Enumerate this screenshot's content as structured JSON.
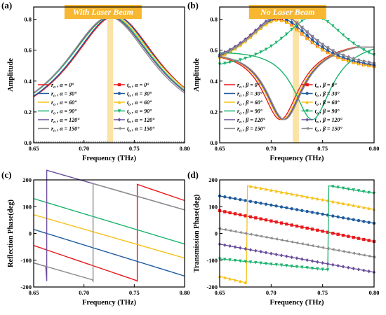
{
  "chart_data": [
    {
      "type": "line",
      "panel_label": "(a)",
      "banner": "With Laser Beam",
      "xlabel": "Frequency (THz)",
      "ylabel": "Amplitude",
      "xlim": [
        0.65,
        0.8
      ],
      "ylim": [
        0.0,
        0.88
      ],
      "xticks": [
        "0.65",
        "0.70",
        "0.75",
        "0.80"
      ],
      "yticks": [
        "0.0",
        "0.2",
        "0.4",
        "0.6",
        "0.8"
      ],
      "highlight_band": [
        0.723,
        0.729
      ],
      "legend_left": [
        "r",
        "r",
        "r",
        "r",
        "r",
        "r"
      ],
      "legend_left_sub": [
        "o",
        "o",
        "o",
        "o",
        "o",
        "o"
      ],
      "legend_right": [
        "t",
        "t",
        "t",
        "t",
        "t",
        "t"
      ],
      "legend_right_sub": [
        "o",
        "o",
        "o",
        "o",
        "o",
        "o"
      ],
      "legend_param": "α",
      "angles": [
        "0°",
        "30°",
        "60°",
        "90°",
        "120°",
        "150°"
      ],
      "series": [
        {
          "legend": "α = 0°",
          "color": "#e8191c",
          "peak": 0.731,
          "amp": 0.825,
          "width": 0.055,
          "floor": 0.0
        },
        {
          "legend": "α = 30°",
          "color": "#1f5c9e",
          "peak": 0.73,
          "amp": 0.826,
          "width": 0.055,
          "floor": 0.0
        },
        {
          "legend": "α = 60°",
          "color": "#f7c21a",
          "peak": 0.728,
          "amp": 0.822,
          "width": 0.057,
          "floor": 0.0
        },
        {
          "legend": "α = 90°",
          "color": "#1db36e",
          "peak": 0.727,
          "amp": 0.82,
          "width": 0.056,
          "floor": 0.0
        },
        {
          "legend": "α = 120°",
          "color": "#6a4c9c",
          "peak": 0.726,
          "amp": 0.818,
          "width": 0.056,
          "floor": 0.0
        },
        {
          "legend": "α = 150°",
          "color": "#8c8c8c",
          "peak": 0.725,
          "amp": 0.817,
          "width": 0.055,
          "floor": 0.0
        }
      ]
    },
    {
      "type": "line",
      "panel_label": "(b)",
      "banner": "No Laser Beam",
      "xlabel": "Frequency (THz)",
      "ylabel": "Amplitude",
      "xlim": [
        0.65,
        0.8
      ],
      "ylim": [
        0.0,
        0.88
      ],
      "xticks": [
        "0.65",
        "0.70",
        "0.75",
        "0.80"
      ],
      "yticks": [
        "0.0",
        "0.2",
        "0.4",
        "0.6",
        "0.8"
      ],
      "highlight_band": [
        0.721,
        0.727
      ],
      "legend_left": [
        "r",
        "r",
        "r",
        "r",
        "r",
        "r"
      ],
      "legend_left_sub": [
        "o",
        "o",
        "o",
        "o",
        "o",
        "o"
      ],
      "legend_right": [
        "t",
        "t",
        "t",
        "t",
        "t",
        "t"
      ],
      "legend_right_sub": [
        "o",
        "o",
        "o",
        "o",
        "o",
        "o"
      ],
      "legend_param": "β",
      "angles": [
        "0°",
        "30°",
        "60°",
        "90°",
        "120°",
        "150°"
      ],
      "series": [
        {
          "legend": "β = 0°",
          "color": "#e8191c",
          "dip": 0.709,
          "t_peak": 0.706,
          "t_amp": 0.8
        },
        {
          "legend": "β = 30°",
          "color": "#1f5c9e",
          "dip": 0.712,
          "t_peak": 0.708,
          "t_amp": 0.81
        },
        {
          "legend": "β = 60°",
          "color": "#f7c21a",
          "dip": 0.711,
          "t_peak": 0.707,
          "t_amp": 0.795
        },
        {
          "legend": "β = 90°",
          "color": "#1db36e",
          "dip": 0.74,
          "t_peak": 0.742,
          "t_amp": 0.82
        },
        {
          "legend": "β = 120°",
          "color": "#6a4c9c",
          "dip": 0.712,
          "t_peak": 0.709,
          "t_amp": 0.828
        },
        {
          "legend": "β = 150°",
          "color": "#8c8c8c",
          "dip": 0.713,
          "t_peak": 0.71,
          "t_amp": 0.825
        }
      ]
    },
    {
      "type": "line",
      "panel_label": "(c)",
      "xlabel": "Frequency (THz)",
      "ylabel": "Reflection Phase(deg)",
      "xlim": [
        0.65,
        0.8
      ],
      "ylim": [
        -200,
        200
      ],
      "xticks": [
        "0.65",
        "0.70",
        "0.75",
        "0.80"
      ],
      "yticks": [
        "-200",
        "-100",
        "0",
        "100",
        "200"
      ],
      "series": [
        {
          "color": "#e8191c",
          "start": -45,
          "slope": -1280,
          "wrap_at": 0.753
        },
        {
          "color": "#1f5c9e",
          "start": 15,
          "slope": -1160,
          "wrap_at": null
        },
        {
          "color": "#f7c21a",
          "start": 70,
          "slope": -1080,
          "wrap_at": null
        },
        {
          "color": "#1db36e",
          "start": 130,
          "slope": -1130,
          "wrap_at": null
        },
        {
          "color": "#6a4c9c",
          "start": -110,
          "slope": -1080,
          "wrap_at": 0.663
        },
        {
          "color": "#8c8c8c",
          "start": -110,
          "slope": -1080,
          "wrap_at": 0.709
        }
      ]
    },
    {
      "type": "line",
      "panel_label": "(d)",
      "xlabel": "Frequency (THz)",
      "ylabel": "Transmission Phase(deg)",
      "xlim": [
        0.65,
        0.8
      ],
      "ylim": [
        -200,
        200
      ],
      "xticks": [
        "0.65",
        "0.70",
        "0.75",
        "0.80"
      ],
      "yticks": [
        "-200",
        "-100",
        "0",
        "100",
        "200"
      ],
      "series": [
        {
          "color": "#e8191c",
          "start": 85,
          "end": -30,
          "wrap_at": null,
          "marker": "square"
        },
        {
          "color": "#1f5c9e",
          "start": 140,
          "end": 38,
          "wrap_at": null,
          "marker": "circle"
        },
        {
          "color": "#f7c21a",
          "start": -160,
          "end": 90,
          "wrap_at": 0.677,
          "marker": "triangle-up"
        },
        {
          "color": "#1db36e",
          "start": -95,
          "end": 150,
          "wrap_at": 0.756,
          "marker": "triangle-down"
        },
        {
          "color": "#6a4c9c",
          "start": -40,
          "end": -145,
          "wrap_at": null,
          "marker": "diamond"
        },
        {
          "color": "#8c8c8c",
          "start": 18,
          "end": -88,
          "wrap_at": null,
          "marker": "triangle-left"
        }
      ]
    }
  ]
}
